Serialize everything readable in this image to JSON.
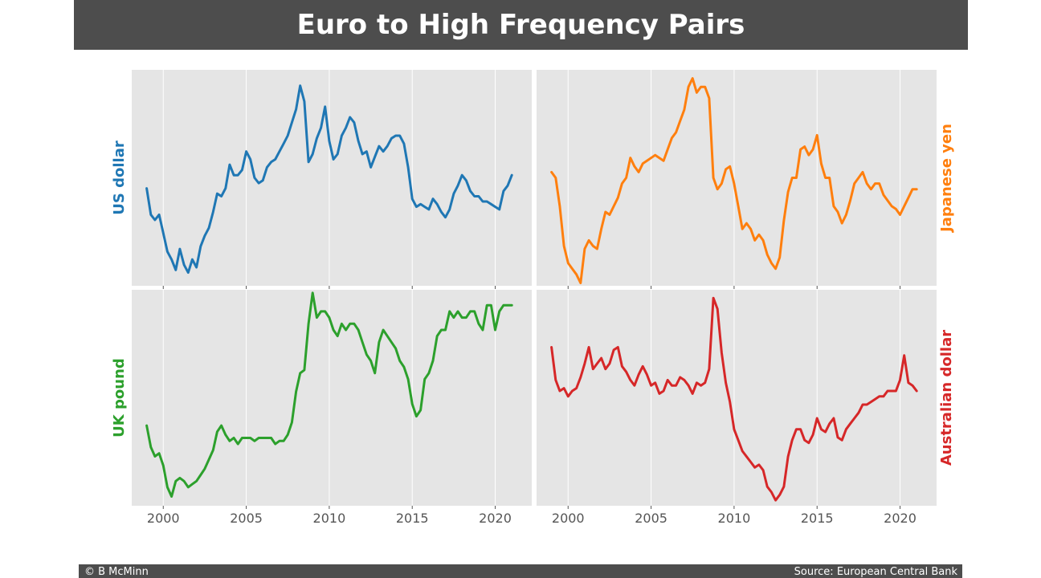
{
  "title": "Euro to High Frequency Pairs",
  "footer": {
    "left": "© B McMinn",
    "right": "Source: European Central Bank"
  },
  "colors": {
    "panel_bg": "#e5e5e5",
    "grid": "#ffffff",
    "tick_text": "#555555",
    "bar_bg": "#4d4d4d"
  },
  "chart_data": [
    {
      "type": "line",
      "name": "US dollar",
      "color": "#1f77b4",
      "label_side": "left",
      "xlim": [
        1998.1,
        2022.2
      ],
      "xticks": [
        2000,
        2005,
        2010,
        2015,
        2020
      ],
      "show_xtick_labels": false,
      "x": [
        1999.0,
        1999.25,
        1999.5,
        1999.75,
        2000.0,
        2000.25,
        2000.5,
        2000.75,
        2001.0,
        2001.25,
        2001.5,
        2001.75,
        2002.0,
        2002.25,
        2002.5,
        2002.75,
        2003.0,
        2003.25,
        2003.5,
        2003.75,
        2004.0,
        2004.25,
        2004.5,
        2004.75,
        2005.0,
        2005.25,
        2005.5,
        2005.75,
        2006.0,
        2006.25,
        2006.5,
        2006.75,
        2007.0,
        2007.25,
        2007.5,
        2007.75,
        2008.0,
        2008.25,
        2008.5,
        2008.75,
        2009.0,
        2009.25,
        2009.5,
        2009.75,
        2010.0,
        2010.25,
        2010.5,
        2010.75,
        2011.0,
        2011.25,
        2011.5,
        2011.75,
        2012.0,
        2012.25,
        2012.5,
        2012.75,
        2013.0,
        2013.25,
        2013.5,
        2013.75,
        2014.0,
        2014.25,
        2014.5,
        2014.75,
        2015.0,
        2015.25,
        2015.5,
        2015.75,
        2016.0,
        2016.25,
        2016.5,
        2016.75,
        2017.0,
        2017.25,
        2017.5,
        2017.75,
        2018.0,
        2018.25,
        2018.5,
        2018.75,
        2019.0,
        2019.25,
        2019.5,
        2019.75,
        2020.0,
        2020.25,
        2020.5,
        2020.75,
        2021.0
      ],
      "y": [
        1.17,
        1.07,
        1.05,
        1.07,
        1.0,
        0.93,
        0.9,
        0.86,
        0.94,
        0.88,
        0.85,
        0.9,
        0.87,
        0.95,
        0.99,
        1.02,
        1.08,
        1.15,
        1.14,
        1.17,
        1.26,
        1.22,
        1.22,
        1.24,
        1.31,
        1.28,
        1.21,
        1.19,
        1.2,
        1.25,
        1.27,
        1.28,
        1.31,
        1.34,
        1.37,
        1.42,
        1.47,
        1.56,
        1.5,
        1.27,
        1.3,
        1.36,
        1.4,
        1.48,
        1.35,
        1.28,
        1.3,
        1.37,
        1.4,
        1.44,
        1.42,
        1.35,
        1.3,
        1.31,
        1.25,
        1.29,
        1.33,
        1.31,
        1.33,
        1.36,
        1.37,
        1.37,
        1.34,
        1.25,
        1.13,
        1.1,
        1.11,
        1.1,
        1.09,
        1.13,
        1.11,
        1.08,
        1.06,
        1.09,
        1.15,
        1.18,
        1.22,
        1.2,
        1.16,
        1.14,
        1.14,
        1.12,
        1.12,
        1.11,
        1.1,
        1.09,
        1.16,
        1.18,
        1.22
      ],
      "ylim": [
        0.8,
        1.62
      ]
    },
    {
      "type": "line",
      "name": "Japanese yen",
      "color": "#ff7f0e",
      "label_side": "right",
      "xlim": [
        1998.1,
        2022.2
      ],
      "xticks": [
        2000,
        2005,
        2010,
        2015,
        2020
      ],
      "show_xtick_labels": false,
      "x": [
        1999.0,
        1999.25,
        1999.5,
        1999.75,
        2000.0,
        2000.25,
        2000.5,
        2000.75,
        2001.0,
        2001.25,
        2001.5,
        2001.75,
        2002.0,
        2002.25,
        2002.5,
        2002.75,
        2003.0,
        2003.25,
        2003.5,
        2003.75,
        2004.0,
        2004.25,
        2004.5,
        2004.75,
        2005.0,
        2005.25,
        2005.5,
        2005.75,
        2006.0,
        2006.25,
        2006.5,
        2006.75,
        2007.0,
        2007.25,
        2007.5,
        2007.75,
        2008.0,
        2008.25,
        2008.5,
        2008.75,
        2009.0,
        2009.25,
        2009.5,
        2009.75,
        2010.0,
        2010.25,
        2010.5,
        2010.75,
        2011.0,
        2011.25,
        2011.5,
        2011.75,
        2012.0,
        2012.25,
        2012.5,
        2012.75,
        2013.0,
        2013.25,
        2013.5,
        2013.75,
        2014.0,
        2014.25,
        2014.5,
        2014.75,
        2015.0,
        2015.25,
        2015.5,
        2015.75,
        2016.0,
        2016.25,
        2016.5,
        2016.75,
        2017.0,
        2017.25,
        2017.5,
        2017.75,
        2018.0,
        2018.25,
        2018.5,
        2018.75,
        2019.0,
        2019.25,
        2019.5,
        2019.75,
        2020.0,
        2020.25,
        2020.5,
        2020.75,
        2021.0
      ],
      "y": [
        132,
        130,
        120,
        106,
        100,
        98,
        96,
        93,
        105,
        108,
        106,
        105,
        112,
        118,
        117,
        120,
        123,
        128,
        130,
        137,
        134,
        132,
        135,
        136,
        137,
        138,
        137,
        136,
        140,
        144,
        146,
        150,
        154,
        162,
        165,
        160,
        162,
        162,
        158,
        130,
        126,
        128,
        133,
        134,
        128,
        120,
        112,
        114,
        112,
        108,
        110,
        108,
        103,
        100,
        98,
        102,
        115,
        125,
        130,
        130,
        140,
        141,
        138,
        140,
        145,
        135,
        130,
        130,
        120,
        118,
        114,
        117,
        122,
        128,
        130,
        132,
        128,
        126,
        128,
        128,
        124,
        122,
        120,
        119,
        117,
        120,
        123,
        126,
        126
      ],
      "ylim": [
        92,
        168
      ]
    },
    {
      "type": "line",
      "name": "UK pound",
      "color": "#2ca02c",
      "label_side": "left",
      "xlim": [
        1998.1,
        2022.2
      ],
      "xticks": [
        2000,
        2005,
        2010,
        2015,
        2020
      ],
      "show_xtick_labels": true,
      "x": [
        1999.0,
        1999.25,
        1999.5,
        1999.75,
        2000.0,
        2000.25,
        2000.5,
        2000.75,
        2001.0,
        2001.25,
        2001.5,
        2001.75,
        2002.0,
        2002.25,
        2002.5,
        2002.75,
        2003.0,
        2003.25,
        2003.5,
        2003.75,
        2004.0,
        2004.25,
        2004.5,
        2004.75,
        2005.0,
        2005.25,
        2005.5,
        2005.75,
        2006.0,
        2006.25,
        2006.5,
        2006.75,
        2007.0,
        2007.25,
        2007.5,
        2007.75,
        2008.0,
        2008.25,
        2008.5,
        2008.75,
        2009.0,
        2009.25,
        2009.5,
        2009.75,
        2010.0,
        2010.25,
        2010.5,
        2010.75,
        2011.0,
        2011.25,
        2011.5,
        2011.75,
        2012.0,
        2012.25,
        2012.5,
        2012.75,
        2013.0,
        2013.25,
        2013.5,
        2013.75,
        2014.0,
        2014.25,
        2014.5,
        2014.75,
        2015.0,
        2015.25,
        2015.5,
        2015.75,
        2016.0,
        2016.25,
        2016.5,
        2016.75,
        2017.0,
        2017.25,
        2017.5,
        2017.75,
        2018.0,
        2018.25,
        2018.5,
        2018.75,
        2019.0,
        2019.25,
        2019.5,
        2019.75,
        2020.0,
        2020.25,
        2020.5,
        2020.75,
        2021.0
      ],
      "y": [
        0.705,
        0.67,
        0.655,
        0.66,
        0.64,
        0.605,
        0.59,
        0.615,
        0.62,
        0.615,
        0.605,
        0.61,
        0.615,
        0.625,
        0.635,
        0.65,
        0.665,
        0.695,
        0.705,
        0.69,
        0.68,
        0.685,
        0.675,
        0.685,
        0.685,
        0.685,
        0.68,
        0.685,
        0.685,
        0.685,
        0.685,
        0.675,
        0.68,
        0.68,
        0.69,
        0.71,
        0.76,
        0.79,
        0.795,
        0.87,
        0.92,
        0.88,
        0.89,
        0.89,
        0.88,
        0.86,
        0.85,
        0.87,
        0.86,
        0.87,
        0.87,
        0.86,
        0.84,
        0.82,
        0.81,
        0.79,
        0.84,
        0.86,
        0.85,
        0.84,
        0.83,
        0.81,
        0.8,
        0.78,
        0.74,
        0.72,
        0.73,
        0.78,
        0.79,
        0.81,
        0.85,
        0.86,
        0.86,
        0.89,
        0.88,
        0.89,
        0.88,
        0.88,
        0.89,
        0.89,
        0.87,
        0.86,
        0.9,
        0.9,
        0.86,
        0.89,
        0.9,
        0.9,
        0.9
      ],
      "ylim": [
        0.575,
        0.925
      ]
    },
    {
      "type": "line",
      "name": "Australian dollar",
      "color": "#d62728",
      "label_side": "right",
      "xlim": [
        1998.1,
        2022.2
      ],
      "xticks": [
        2000,
        2005,
        2010,
        2015,
        2020
      ],
      "show_xtick_labels": true,
      "x": [
        1999.0,
        1999.25,
        1999.5,
        1999.75,
        2000.0,
        2000.25,
        2000.5,
        2000.75,
        2001.0,
        2001.25,
        2001.5,
        2001.75,
        2002.0,
        2002.25,
        2002.5,
        2002.75,
        2003.0,
        2003.25,
        2003.5,
        2003.75,
        2004.0,
        2004.25,
        2004.5,
        2004.75,
        2005.0,
        2005.25,
        2005.5,
        2005.75,
        2006.0,
        2006.25,
        2006.5,
        2006.75,
        2007.0,
        2007.25,
        2007.5,
        2007.75,
        2008.0,
        2008.25,
        2008.5,
        2008.75,
        2009.0,
        2009.25,
        2009.5,
        2009.75,
        2010.0,
        2010.25,
        2010.5,
        2010.75,
        2011.0,
        2011.25,
        2011.5,
        2011.75,
        2012.0,
        2012.25,
        2012.5,
        2012.75,
        2013.0,
        2013.25,
        2013.5,
        2013.75,
        2014.0,
        2014.25,
        2014.5,
        2014.75,
        2015.0,
        2015.25,
        2015.5,
        2015.75,
        2016.0,
        2016.25,
        2016.5,
        2016.75,
        2017.0,
        2017.25,
        2017.5,
        2017.75,
        2018.0,
        2018.25,
        2018.5,
        2018.75,
        2019.0,
        2019.25,
        2019.5,
        2019.75,
        2020.0,
        2020.25,
        2020.5,
        2020.75,
        2021.0
      ],
      "y": [
        1.78,
        1.66,
        1.62,
        1.63,
        1.6,
        1.62,
        1.63,
        1.67,
        1.72,
        1.78,
        1.7,
        1.72,
        1.74,
        1.7,
        1.72,
        1.77,
        1.78,
        1.71,
        1.69,
        1.66,
        1.64,
        1.68,
        1.71,
        1.68,
        1.64,
        1.65,
        1.61,
        1.62,
        1.66,
        1.64,
        1.64,
        1.67,
        1.66,
        1.64,
        1.61,
        1.65,
        1.64,
        1.65,
        1.7,
        1.96,
        1.92,
        1.76,
        1.65,
        1.58,
        1.48,
        1.44,
        1.4,
        1.38,
        1.36,
        1.34,
        1.35,
        1.33,
        1.27,
        1.25,
        1.22,
        1.24,
        1.27,
        1.38,
        1.44,
        1.48,
        1.48,
        1.44,
        1.43,
        1.46,
        1.52,
        1.48,
        1.47,
        1.5,
        1.52,
        1.45,
        1.44,
        1.48,
        1.5,
        1.52,
        1.54,
        1.57,
        1.57,
        1.58,
        1.59,
        1.6,
        1.6,
        1.62,
        1.62,
        1.62,
        1.66,
        1.75,
        1.65,
        1.64,
        1.62
      ],
      "ylim": [
        1.2,
        1.99
      ]
    }
  ]
}
